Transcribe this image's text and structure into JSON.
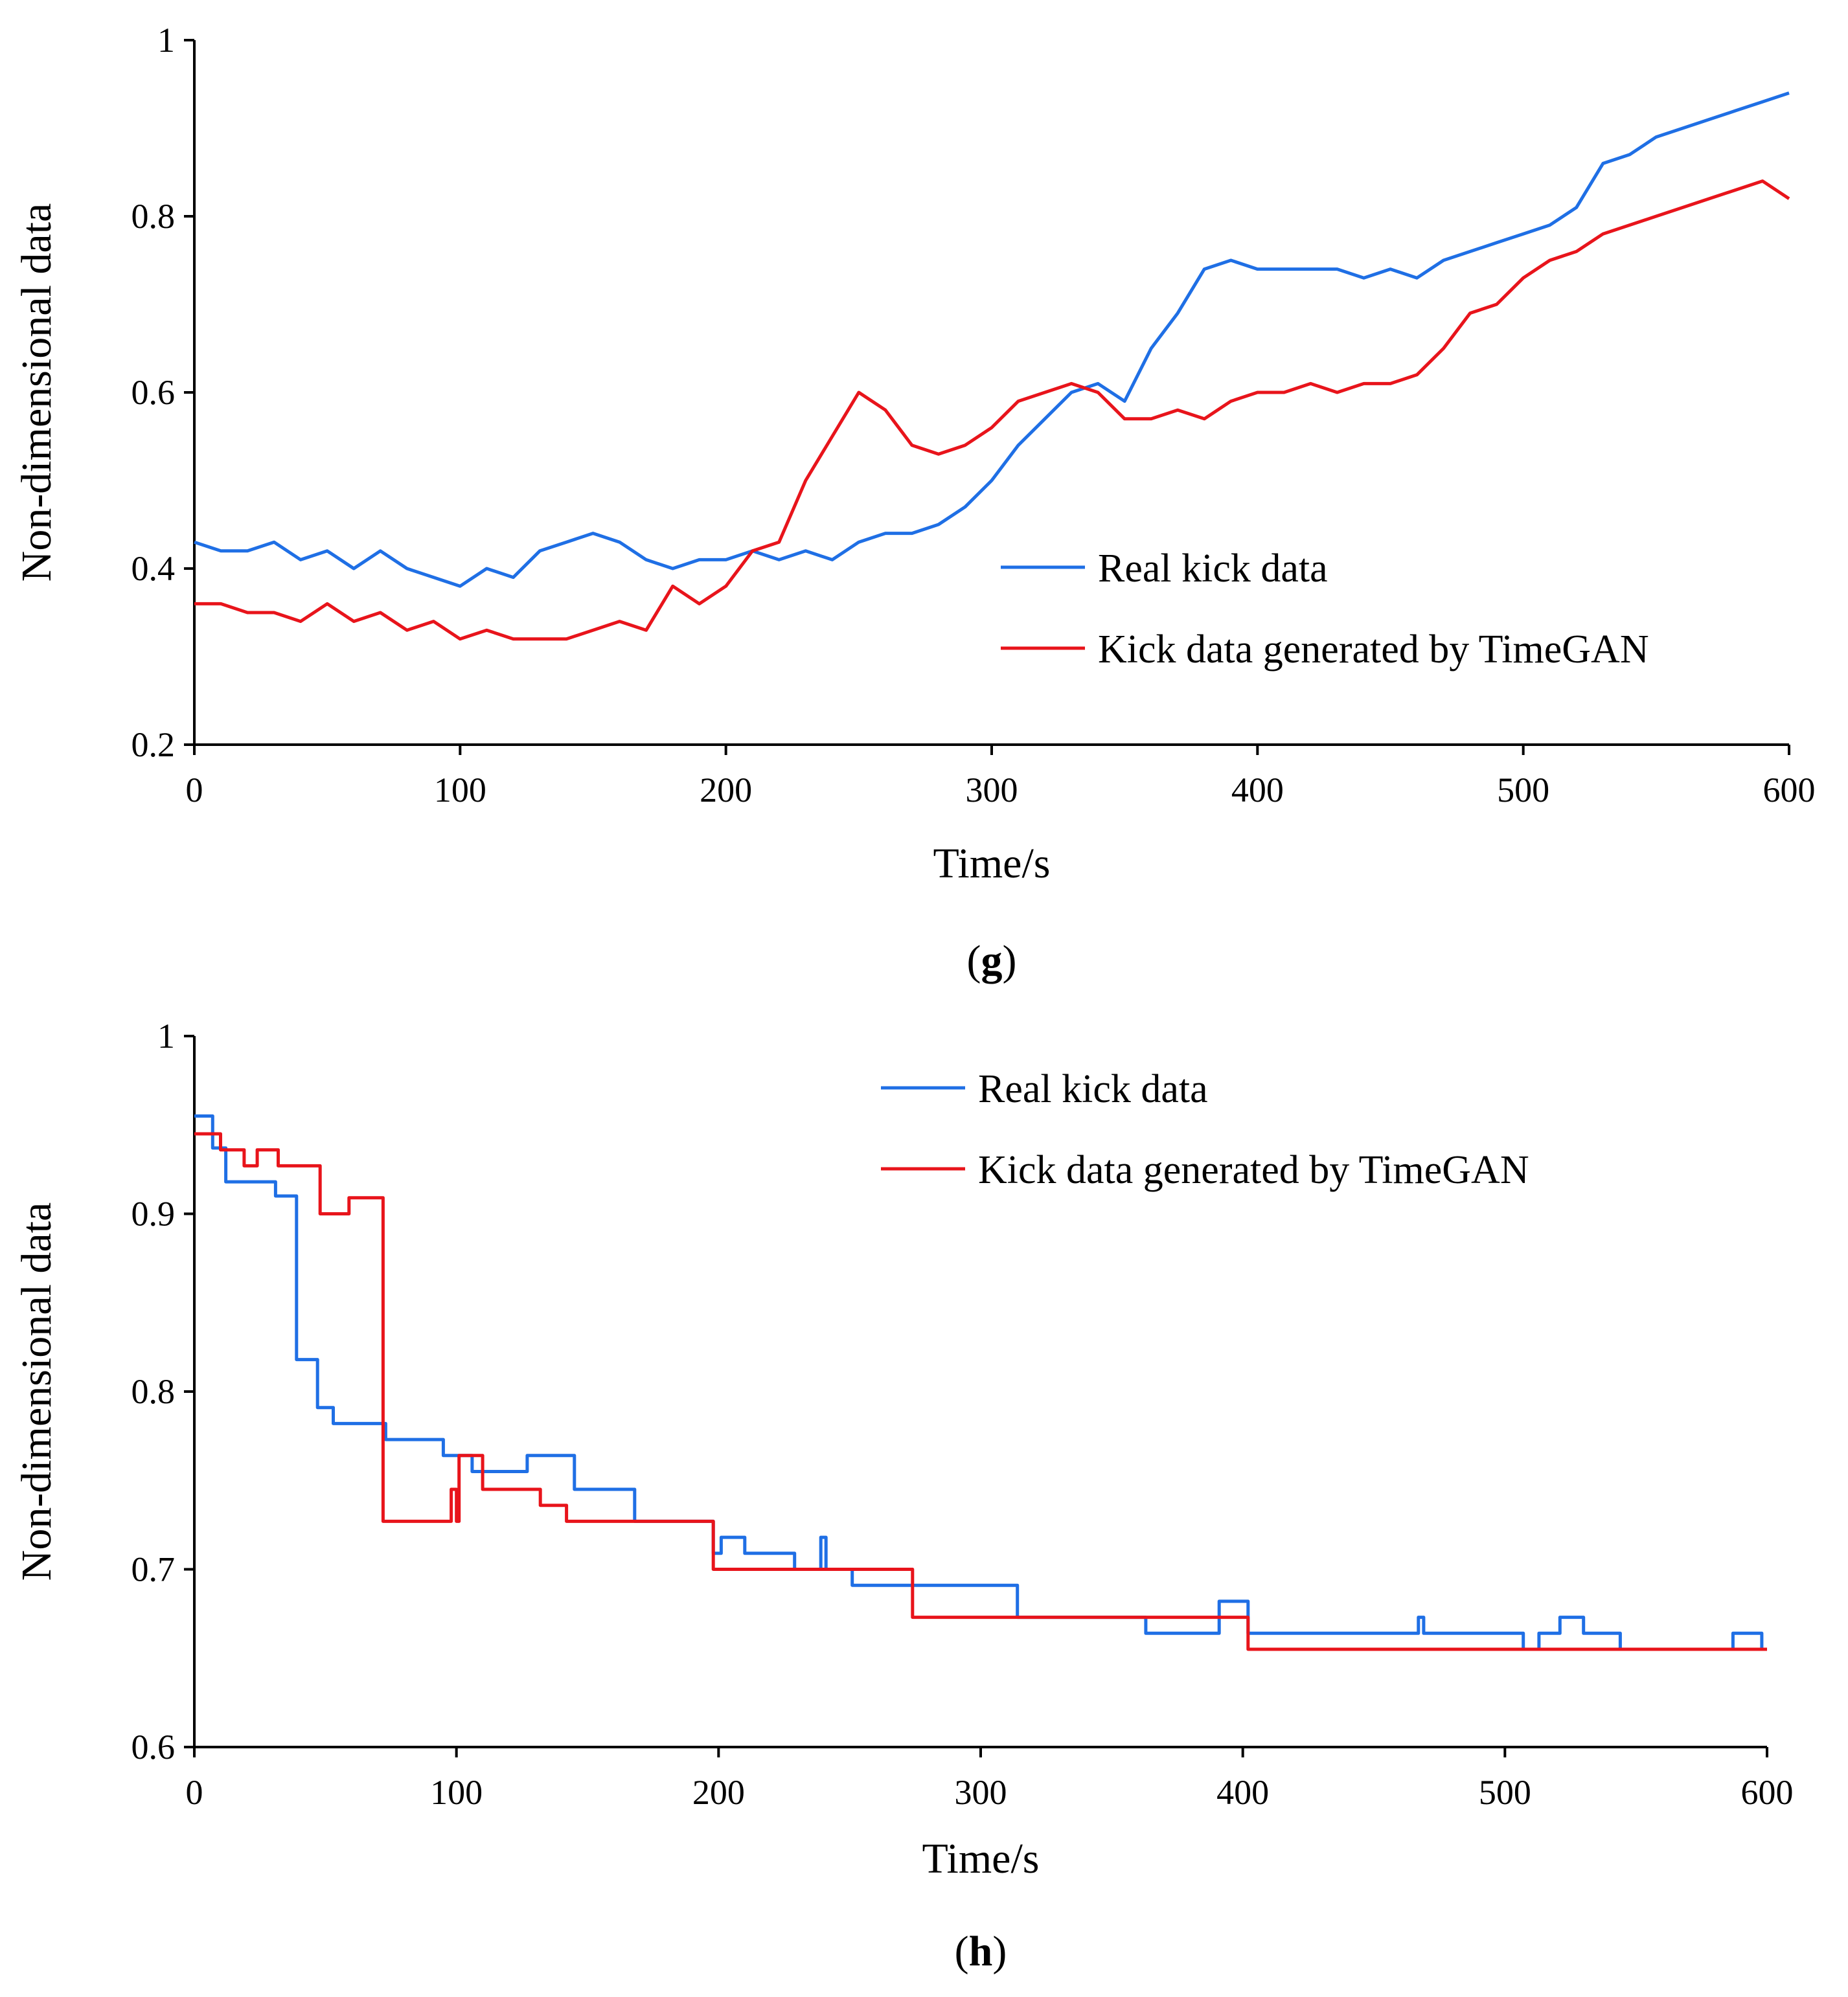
{
  "chart_data": [
    {
      "type": "line",
      "panel_label": "g",
      "xlabel": "Time/s",
      "ylabel": "Non-dimensional data",
      "xlim": [
        0,
        600
      ],
      "ylim": [
        0.2,
        1.0
      ],
      "x_ticks": [
        "0",
        "100",
        "200",
        "300",
        "400",
        "500",
        "600"
      ],
      "y_ticks": [
        "0.2",
        "0.4",
        "0.6",
        "0.8",
        "1"
      ],
      "grid": false,
      "legend_position": "center-right",
      "series": [
        {
          "name": "Real kick data",
          "color": "#1f6fe5",
          "x": [
            0,
            10,
            20,
            30,
            40,
            50,
            60,
            70,
            80,
            90,
            100,
            110,
            120,
            130,
            140,
            150,
            160,
            170,
            180,
            190,
            200,
            210,
            220,
            230,
            240,
            250,
            260,
            270,
            280,
            290,
            300,
            310,
            320,
            330,
            340,
            350,
            360,
            370,
            380,
            390,
            400,
            410,
            420,
            430,
            440,
            450,
            460,
            470,
            480,
            490,
            500,
            510,
            520,
            530,
            540,
            550,
            560,
            570,
            580,
            590,
            600
          ],
          "y": [
            0.43,
            0.42,
            0.42,
            0.43,
            0.41,
            0.42,
            0.4,
            0.42,
            0.4,
            0.39,
            0.38,
            0.4,
            0.39,
            0.42,
            0.43,
            0.44,
            0.43,
            0.41,
            0.4,
            0.41,
            0.41,
            0.42,
            0.41,
            0.42,
            0.41,
            0.43,
            0.44,
            0.44,
            0.45,
            0.47,
            0.5,
            0.54,
            0.57,
            0.6,
            0.61,
            0.59,
            0.65,
            0.69,
            0.74,
            0.75,
            0.74,
            0.74,
            0.74,
            0.74,
            0.73,
            0.74,
            0.73,
            0.75,
            0.76,
            0.77,
            0.78,
            0.79,
            0.81,
            0.86,
            0.87,
            0.89,
            0.9,
            0.91,
            0.92,
            0.93,
            0.94
          ]
        },
        {
          "name": "Kick data generated by TimeGAN",
          "color": "#e8141b",
          "x": [
            0,
            10,
            20,
            30,
            40,
            50,
            60,
            70,
            80,
            90,
            100,
            110,
            120,
            130,
            140,
            150,
            160,
            170,
            180,
            190,
            200,
            210,
            220,
            230,
            240,
            250,
            260,
            270,
            280,
            290,
            300,
            310,
            320,
            330,
            340,
            350,
            360,
            370,
            380,
            390,
            400,
            410,
            420,
            430,
            440,
            450,
            460,
            470,
            480,
            490,
            500,
            510,
            520,
            530,
            540,
            550,
            560,
            570,
            580,
            590,
            600
          ],
          "y": [
            0.36,
            0.36,
            0.35,
            0.35,
            0.34,
            0.36,
            0.34,
            0.35,
            0.33,
            0.34,
            0.32,
            0.33,
            0.32,
            0.32,
            0.32,
            0.33,
            0.34,
            0.33,
            0.38,
            0.36,
            0.38,
            0.42,
            0.43,
            0.5,
            0.55,
            0.6,
            0.58,
            0.54,
            0.53,
            0.54,
            0.56,
            0.59,
            0.6,
            0.61,
            0.6,
            0.57,
            0.57,
            0.58,
            0.57,
            0.59,
            0.6,
            0.6,
            0.61,
            0.6,
            0.61,
            0.61,
            0.62,
            0.65,
            0.69,
            0.7,
            0.73,
            0.75,
            0.76,
            0.78,
            0.79,
            0.8,
            0.81,
            0.82,
            0.83,
            0.84,
            0.82
          ]
        }
      ]
    },
    {
      "type": "line",
      "panel_label": "h",
      "xlabel": "Time/s",
      "ylabel": "Non-dimensional data",
      "xlim": [
        0,
        600
      ],
      "ylim": [
        0.6,
        1.0
      ],
      "x_ticks": [
        "0",
        "100",
        "200",
        "300",
        "400",
        "500",
        "600"
      ],
      "y_ticks": [
        "0.6",
        "0.7",
        "0.8",
        "0.9",
        "1"
      ],
      "grid": false,
      "legend_position": "top-right",
      "series": [
        {
          "name": "Real kick data",
          "color": "#1f6fe5",
          "x": [
            0,
            7,
            7,
            12,
            12,
            31,
            31,
            39,
            39,
            47,
            47,
            53,
            53,
            73,
            73,
            95,
            95,
            106,
            106,
            127,
            127,
            145,
            145,
            168,
            168,
            198,
            198,
            201,
            201,
            206,
            206,
            210,
            210,
            229,
            229,
            239,
            239,
            241,
            241,
            244,
            244,
            251,
            251,
            314,
            314,
            363,
            363,
            391,
            391,
            402,
            402,
            467,
            467,
            469,
            469,
            507,
            507,
            513,
            513,
            521,
            521,
            530,
            530,
            544,
            544,
            587,
            587,
            598,
            598
          ],
          "y": [
            0.955,
            0.955,
            0.937,
            0.937,
            0.918,
            0.918,
            0.91,
            0.91,
            0.818,
            0.818,
            0.791,
            0.791,
            0.782,
            0.782,
            0.773,
            0.773,
            0.764,
            0.764,
            0.755,
            0.755,
            0.764,
            0.764,
            0.745,
            0.745,
            0.727,
            0.727,
            0.709,
            0.709,
            0.718,
            0.718,
            0.718,
            0.718,
            0.709,
            0.709,
            0.7,
            0.7,
            0.718,
            0.718,
            0.7,
            0.7,
            0.7,
            0.7,
            0.691,
            0.691,
            0.673,
            0.673,
            0.664,
            0.664,
            0.682,
            0.682,
            0.664,
            0.664,
            0.673,
            0.673,
            0.664,
            0.664,
            0.655,
            0.655,
            0.664,
            0.664,
            0.673,
            0.673,
            0.664,
            0.664,
            0.655,
            0.655,
            0.664,
            0.664,
            0.655
          ]
        },
        {
          "name": "Kick data generated by TimeGAN",
          "color": "#e8141b",
          "x": [
            0,
            10,
            10,
            19,
            19,
            24,
            24,
            32,
            32,
            48,
            48,
            59,
            59,
            70,
            70,
            72,
            72,
            91,
            91,
            98,
            98,
            100,
            100,
            101,
            101,
            102,
            102,
            110,
            110,
            112,
            112,
            132,
            132,
            142,
            142,
            198,
            198,
            214,
            214,
            274,
            274,
            355,
            355,
            402,
            402,
            600
          ],
          "y": [
            0.945,
            0.945,
            0.936,
            0.936,
            0.927,
            0.927,
            0.936,
            0.936,
            0.927,
            0.927,
            0.9,
            0.9,
            0.909,
            0.909,
            0.909,
            0.909,
            0.727,
            0.727,
            0.727,
            0.727,
            0.745,
            0.745,
            0.727,
            0.727,
            0.764,
            0.764,
            0.764,
            0.764,
            0.745,
            0.745,
            0.745,
            0.745,
            0.736,
            0.736,
            0.727,
            0.727,
            0.7,
            0.7,
            0.7,
            0.7,
            0.673,
            0.673,
            0.673,
            0.673,
            0.655,
            0.655
          ]
        }
      ]
    }
  ]
}
